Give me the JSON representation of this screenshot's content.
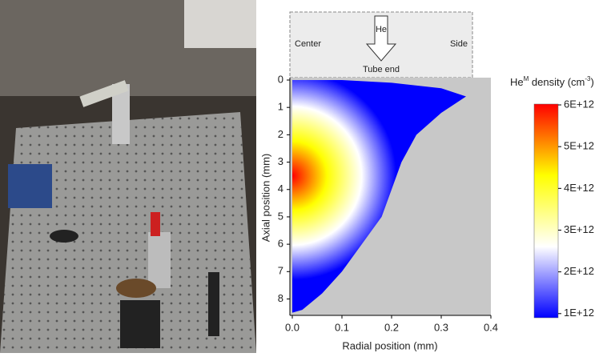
{
  "chart_data": {
    "type": "contour",
    "x_label": "Radial position (mm)",
    "y_label": "Axial position (mm)",
    "xlim": [
      0,
      0.4
    ],
    "xticks": [
      {
        "value": 0,
        "label": "0.0"
      },
      0.1,
      0.2,
      0.3,
      0.4
    ],
    "ylim": [
      0,
      8.6
    ],
    "yticks": [
      0,
      1,
      2,
      3,
      4,
      5,
      6,
      7,
      8
    ],
    "y_inverted": true,
    "background": "#c8c8c8",
    "boundary": {
      "x": [
        0,
        0.1,
        0.2,
        0.3,
        0.35,
        0.3,
        0.25,
        0.22,
        0.2,
        0.18,
        0.14,
        0.1,
        0.06,
        0.02,
        0
      ],
      "y": [
        0,
        0,
        0.1,
        0.3,
        0.6,
        1.2,
        2,
        3,
        4,
        5,
        6,
        7,
        7.8,
        8.4,
        8.5
      ]
    },
    "peak": {
      "x": 0,
      "y": 3.5
    },
    "inset": {
      "left": "Center",
      "gas": "He",
      "right": "Side",
      "bottom": "Tube end"
    },
    "colorbar": {
      "title": [
        "He",
        "M",
        " density (cm",
        "-3",
        ")"
      ],
      "lim": [
        900000000000,
        6020000000000
      ],
      "colors": [
        "#0000ff",
        "#ffffff",
        "#ffff00",
        "#ff0000"
      ],
      "ticks": [
        {
          "value": 1000000000000,
          "label": "1E+12"
        },
        {
          "value": 2000000000000,
          "label": "2E+12"
        },
        {
          "value": 3000000000000,
          "label": "3E+12"
        },
        {
          "value": 4000000000000,
          "label": "4E+12"
        },
        {
          "value": 5000000000000,
          "label": "5E+12"
        },
        {
          "value": 6000000000000,
          "label": "6E+12"
        }
      ]
    }
  }
}
